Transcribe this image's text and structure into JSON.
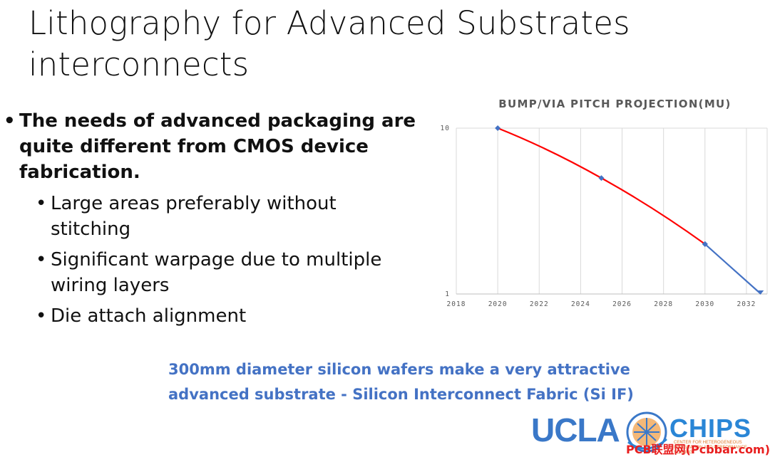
{
  "slide": {
    "title_line1": "Lithography for Advanced Substrates",
    "title_line2": "interconnects",
    "bullet_main": "The needs of advanced packaging are quite different from CMOS device fabrication.",
    "sub_bullets": [
      "Large areas preferably without stitching",
      "Significant warpage due to multiple wiring layers",
      "Die attach alignment"
    ],
    "callout_line1": "300mm diameter silicon wafers make a very attractive",
    "callout_line2": "advanced substrate - Silicon Interconnect Fabric (Si IF)",
    "bullet_char": "•"
  },
  "logo": {
    "text_left": "UCLA",
    "text_right": "CHIPS",
    "tagline": "CENTER FOR HETEROGENEOUS INTEGRATION AND PERFORMANCE SCALING"
  },
  "watermark": {
    "text": "PCB联盟网(Pcbbar.com)"
  },
  "chart_data": {
    "type": "line",
    "title": "BUMP/VIA PITCH PROJECTION(MU)",
    "x_scale": "linear",
    "y_scale": "log",
    "xlim": [
      2018,
      2033
    ],
    "ylim": [
      1,
      10
    ],
    "x_ticks": [
      "2018",
      "2020",
      "2022",
      "2024",
      "2026",
      "2028",
      "2030",
      "2032"
    ],
    "y_ticks": [
      "1",
      "10"
    ],
    "grid": "vertical",
    "series": [
      {
        "values_x": [
          2020,
          2025,
          2030
        ],
        "values_y": [
          10,
          5,
          2
        ],
        "color": "#ff0000",
        "markers": true
      },
      {
        "values_x": [
          2030,
          2032.7
        ],
        "values_y": [
          2,
          1
        ],
        "color": "#4472c4",
        "markers": true
      }
    ],
    "marker_color": "#4472c4"
  }
}
